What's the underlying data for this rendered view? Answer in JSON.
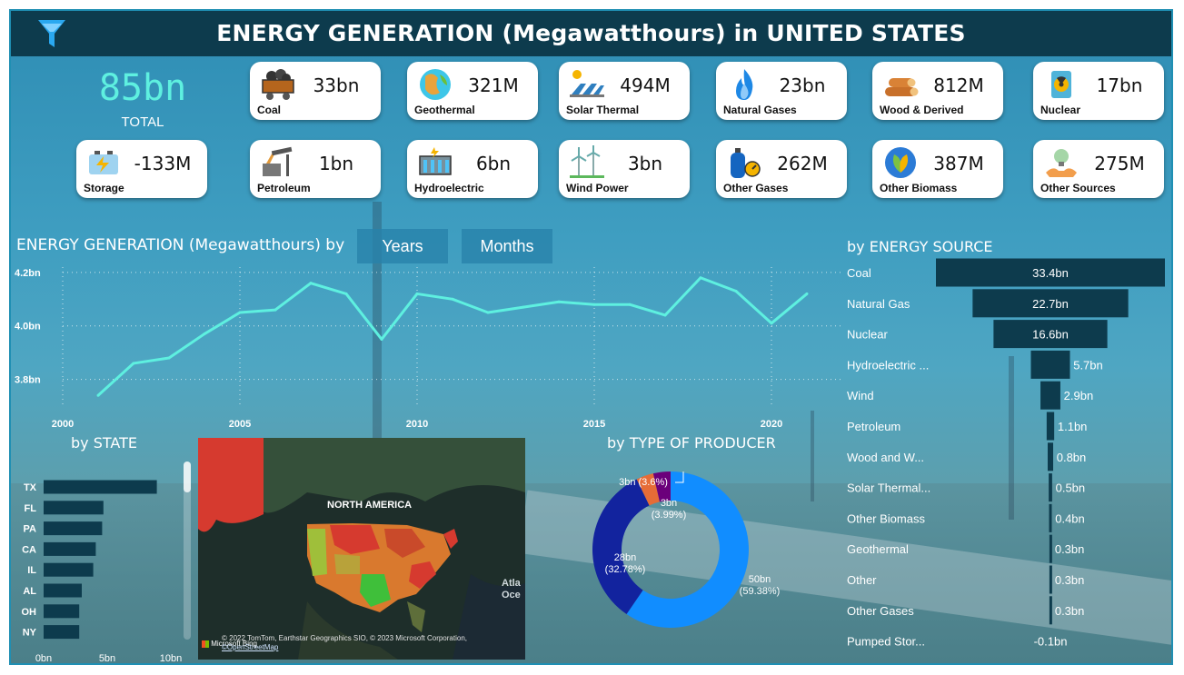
{
  "header": {
    "title": "ENERGY GENERATION (Megawatthours) in UNITED STATES"
  },
  "total": {
    "value": "85bn",
    "label": "TOTAL"
  },
  "cards": [
    {
      "value": "33bn",
      "label": "Coal",
      "icon": "coal-cart-icon"
    },
    {
      "value": "321M",
      "label": "Geothermal",
      "icon": "globe-icon"
    },
    {
      "value": "494M",
      "label": "Solar Thermal",
      "icon": "solar-panel-icon"
    },
    {
      "value": "23bn",
      "label": "Natural Gases",
      "icon": "flame-icon"
    },
    {
      "value": "812M",
      "label": "Wood & Derived",
      "icon": "logs-icon"
    },
    {
      "value": "17bn",
      "label": "Nuclear",
      "icon": "nuclear-icon"
    },
    {
      "value": "-133M",
      "label": "Storage",
      "icon": "battery-icon"
    },
    {
      "value": "1bn",
      "label": "Petroleum",
      "icon": "oil-pump-icon"
    },
    {
      "value": "6bn",
      "label": "Hydroelectric",
      "icon": "dam-icon"
    },
    {
      "value": "3bn",
      "label": "Wind Power",
      "icon": "wind-turbine-icon"
    },
    {
      "value": "262M",
      "label": "Other Gases",
      "icon": "gas-cylinder-icon"
    },
    {
      "value": "387M",
      "label": "Other Biomass",
      "icon": "leaf-icon"
    },
    {
      "value": "275M",
      "label": "Other Sources",
      "icon": "lightbulb-icon"
    }
  ],
  "toggles": {
    "years": "Years",
    "months": "Months"
  },
  "chart_data": [
    {
      "type": "line",
      "title": "ENERGY GENERATION (Megawatthours) by",
      "x": [
        2001,
        2002,
        2003,
        2004,
        2005,
        2006,
        2007,
        2008,
        2009,
        2010,
        2011,
        2012,
        2013,
        2014,
        2015,
        2016,
        2017,
        2018,
        2019,
        2020,
        2021
      ],
      "values": [
        3.74,
        3.86,
        3.88,
        3.97,
        4.05,
        4.06,
        4.16,
        4.12,
        3.95,
        4.12,
        4.1,
        4.05,
        4.07,
        4.09,
        4.08,
        4.08,
        4.04,
        4.18,
        4.13,
        4.01,
        4.12
      ],
      "yticks": [
        "3.8bn",
        "4.0bn",
        "4.2bn"
      ],
      "ytick_values": [
        3.8,
        4.0,
        4.2
      ],
      "xticks": [
        2000,
        2005,
        2010,
        2015,
        2020
      ],
      "ylim": [
        3.7,
        4.22
      ],
      "xlim": [
        2000,
        2022
      ],
      "color": "#5ef0e0",
      "grid": true
    },
    {
      "type": "bar",
      "title": "by ENERGY SOURCE",
      "orientation": "horizontal",
      "categories": [
        "Coal",
        "Natural Gas",
        "Nuclear",
        "Hydroelectric ...",
        "Wind",
        "Petroleum",
        "Wood and W...",
        "Solar Thermal...",
        "Other Biomass",
        "Geothermal",
        "Other",
        "Other Gases",
        "Pumped Stor..."
      ],
      "values": [
        33.4,
        22.7,
        16.6,
        5.7,
        2.9,
        1.1,
        0.8,
        0.5,
        0.4,
        0.3,
        0.3,
        0.3,
        -0.1
      ],
      "labels": [
        "33.4bn",
        "22.7bn",
        "16.6bn",
        "5.7bn",
        "2.9bn",
        "1.1bn",
        "0.8bn",
        "0.5bn",
        "0.4bn",
        "0.3bn",
        "0.3bn",
        "0.3bn",
        "-0.1bn"
      ],
      "color": "#0d3b4d"
    },
    {
      "type": "bar",
      "title": "by STATE",
      "orientation": "horizontal",
      "categories": [
        "TX",
        "FL",
        "PA",
        "CA",
        "IL",
        "AL",
        "OH",
        "NY"
      ],
      "values": [
        8.9,
        4.7,
        4.6,
        4.1,
        3.9,
        3.0,
        2.8,
        2.8
      ],
      "xticks": [
        "0bn",
        "5bn",
        "10bn"
      ],
      "xtick_values": [
        0,
        5,
        10
      ],
      "xlim": [
        0,
        10
      ],
      "color": "#0d3b4d"
    },
    {
      "type": "pie",
      "title": "by TYPE OF PRODUCER",
      "donut": true,
      "values": [
        50,
        28,
        3,
        3
      ],
      "labels": [
        "50bn",
        "28bn",
        "3bn",
        "3bn"
      ],
      "percents": [
        "(59.38%)",
        "(32.78%)",
        "(3.99%)",
        "(3.6%)"
      ],
      "colors": [
        "#118dff",
        "#12239e",
        "#e66c37",
        "#6b007b"
      ]
    }
  ],
  "map": {
    "region_label": "NORTH AMERICA",
    "ocean_label_1": "Atla",
    "ocean_label_2": "Oce",
    "credit": "© 2022 TomTom, Earthstar Geographics SIO, © 2023 Microsoft Corporation,",
    "credit_link": "©OpenStreetMap",
    "bing": "Microsoft Bing"
  }
}
